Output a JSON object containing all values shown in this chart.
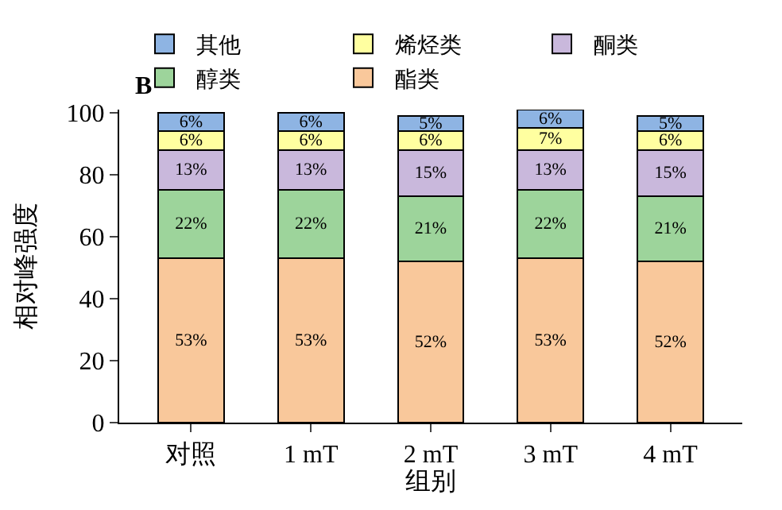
{
  "chart_data": {
    "type": "bar",
    "stacked": true,
    "xlabel": "组别",
    "ylabel": "相对峰强度",
    "annotations": [
      "B"
    ],
    "categories": [
      "对照",
      "1 mT",
      "2 mT",
      "3 mT",
      "4 mT"
    ],
    "series": [
      {
        "name": "酯类",
        "color": "#f9c89b",
        "values": [
          53,
          53,
          52,
          53,
          52
        ],
        "value_labels": [
          "53%",
          "53%",
          "52%",
          "53%",
          "52%"
        ]
      },
      {
        "name": "醇类",
        "color": "#9dd49b",
        "values": [
          22,
          22,
          21,
          22,
          21
        ],
        "value_labels": [
          "22%",
          "22%",
          "21%",
          "22%",
          "21%"
        ]
      },
      {
        "name": "酮类",
        "color": "#c9b8dc",
        "values": [
          13,
          13,
          15,
          13,
          15
        ],
        "value_labels": [
          "13%",
          "13%",
          "15%",
          "13%",
          "15%"
        ]
      },
      {
        "name": "烯烃类",
        "color": "#ffffa0",
        "values": [
          6,
          6,
          6,
          7,
          6
        ],
        "value_labels": [
          "6%",
          "6%",
          "6%",
          "7%",
          "6%"
        ]
      },
      {
        "name": "其他",
        "color": "#8eb4e3",
        "values": [
          6,
          6,
          5,
          6,
          5
        ],
        "value_labels": [
          "6%",
          "6%",
          "5%",
          "6%",
          "5%"
        ]
      }
    ],
    "ylim": [
      0,
      101
    ],
    "yticks": [
      0,
      20,
      40,
      60,
      80,
      100
    ],
    "legend": "top"
  }
}
